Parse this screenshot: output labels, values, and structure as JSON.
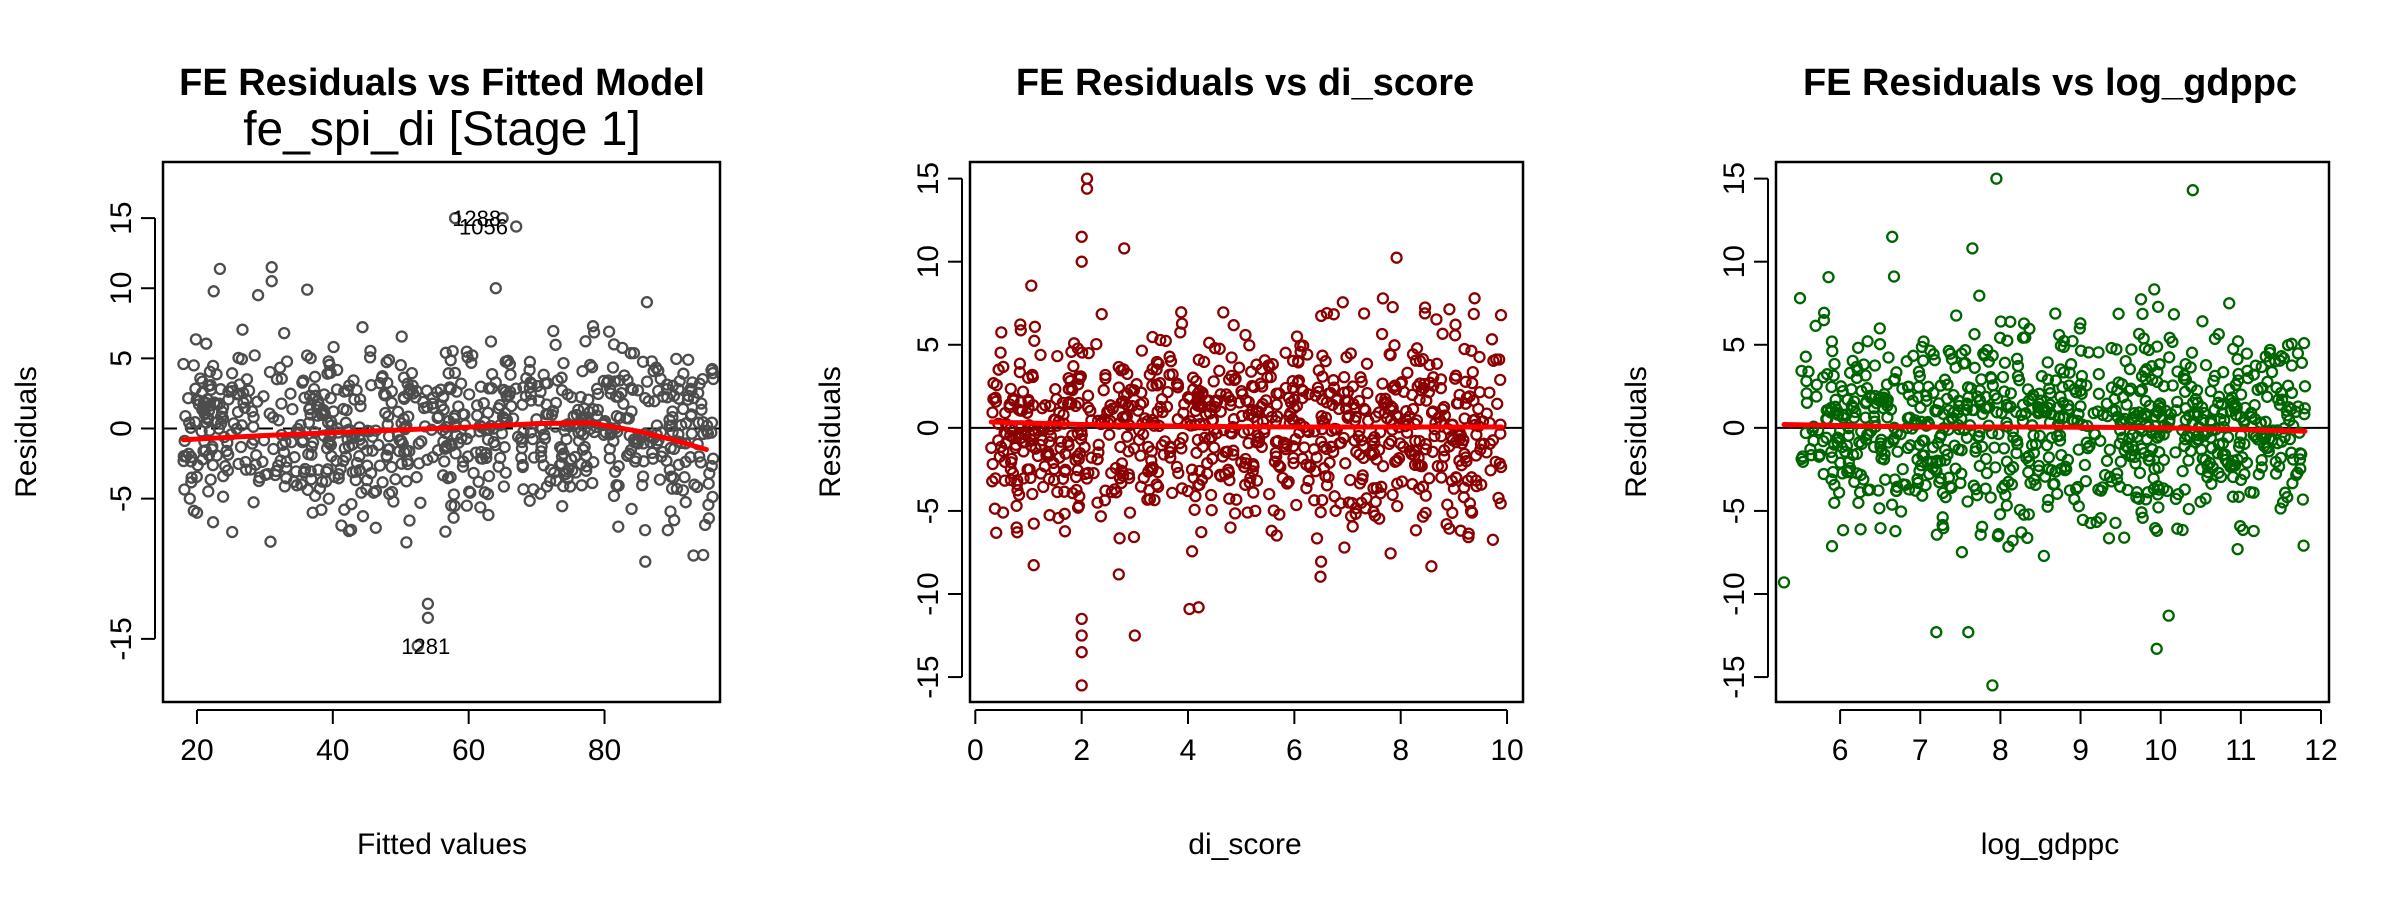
{
  "chart_data": [
    {
      "type": "scatter",
      "title": "FE Residuals vs Fitted Model",
      "subtitle": "fe_spi_di [Stage 1]",
      "xlabel": "Fitted values",
      "ylabel": "Residuals",
      "xlim": [
        15,
        97
      ],
      "ylim": [
        -19.5,
        19
      ],
      "xticks": [
        20,
        40,
        60,
        80
      ],
      "yticks": [
        -15,
        -5,
        0,
        5,
        10,
        15
      ],
      "point_color": "#4d4d4d",
      "smooth_color": "#ff0000",
      "reference_line": {
        "y": 0,
        "style": "dashed"
      },
      "smooth": {
        "x": [
          18,
          30,
          45,
          60,
          70,
          78,
          85,
          90,
          95
        ],
        "y": [
          -0.8,
          -0.5,
          -0.2,
          0.1,
          0.35,
          0.4,
          -0.2,
          -0.8,
          -1.5
        ]
      },
      "annotations": [
        {
          "text": "1288",
          "x": 60,
          "y": 15
        },
        {
          "text": "1056",
          "x": 61,
          "y": 14.4
        },
        {
          "text": "1281",
          "x": 52.5,
          "y": -15.5
        }
      ],
      "cloud": {
        "n": 800,
        "x": [
          18,
          96
        ],
        "y_sd": 3.2,
        "seed": 11
      },
      "highlight_points": [
        {
          "x": 58,
          "y": 15
        },
        {
          "x": 65,
          "y": 15
        },
        {
          "x": 67,
          "y": 14.4
        },
        {
          "x": 52.5,
          "y": -15.5
        },
        {
          "x": 54,
          "y": -12.5
        },
        {
          "x": 54,
          "y": -13.5
        },
        {
          "x": 86,
          "y": -9.5
        },
        {
          "x": 31,
          "y": 11.5
        },
        {
          "x": 31,
          "y": 10.5
        },
        {
          "x": 29,
          "y": 9.5
        },
        {
          "x": 64,
          "y": 10
        },
        {
          "x": 18,
          "y": 4.6
        }
      ]
    },
    {
      "type": "scatter",
      "title": "FE Residuals vs di_score",
      "xlabel": "di_score",
      "ylabel": "Residuals",
      "xlim": [
        -0.1,
        10.3
      ],
      "ylim": [
        -16.5,
        16
      ],
      "xticks": [
        0,
        2,
        4,
        6,
        8,
        10
      ],
      "yticks": [
        -15,
        -10,
        -5,
        0,
        5,
        10,
        15
      ],
      "point_color": "#8b0000",
      "smooth_color": "#ff0000",
      "reference_line": {
        "y": 0,
        "style": "solid"
      },
      "smooth": {
        "x": [
          0.3,
          2,
          4,
          6,
          8,
          9.9
        ],
        "y": [
          0.35,
          0.2,
          0.1,
          0.05,
          0.05,
          0.05
        ]
      },
      "cloud": {
        "n": 900,
        "x": [
          0.3,
          9.9
        ],
        "y_sd": 3.0,
        "seed": 23
      },
      "highlight_points": [
        {
          "x": 2.1,
          "y": 15
        },
        {
          "x": 2.1,
          "y": 14.4
        },
        {
          "x": 2.0,
          "y": 11.5
        },
        {
          "x": 2.0,
          "y": 10
        },
        {
          "x": 2.0,
          "y": -15.5
        },
        {
          "x": 2.0,
          "y": -13.5
        },
        {
          "x": 2.0,
          "y": -12.5
        },
        {
          "x": 3.0,
          "y": -12.5
        },
        {
          "x": 2.0,
          "y": -11.5
        },
        {
          "x": 4.2,
          "y": -10.8
        },
        {
          "x": 2.8,
          "y": 10.8
        },
        {
          "x": 0.3,
          "y": -1.2
        }
      ]
    },
    {
      "type": "scatter",
      "title": "FE Residuals vs log_gdppc",
      "xlabel": "log_gdppc",
      "ylabel": "Residuals",
      "xlim": [
        5.2,
        12.1
      ],
      "ylim": [
        -16.5,
        16
      ],
      "xticks": [
        6,
        7,
        8,
        9,
        10,
        11,
        12
      ],
      "yticks": [
        -15,
        -10,
        -5,
        0,
        5,
        10,
        15
      ],
      "point_color": "#006400",
      "smooth_color": "#ff0000",
      "reference_line": {
        "y": 0,
        "style": "solid"
      },
      "smooth": {
        "x": [
          5.3,
          7,
          8.5,
          10,
          11.8
        ],
        "y": [
          0.2,
          0.05,
          0.05,
          0.0,
          -0.2
        ]
      },
      "cloud": {
        "n": 900,
        "x": [
          5.5,
          11.8
        ],
        "y_sd": 3.0,
        "seed": 37
      },
      "highlight_points": [
        {
          "x": 7.95,
          "y": 15
        },
        {
          "x": 10.4,
          "y": 14.3
        },
        {
          "x": 7.9,
          "y": -15.5
        },
        {
          "x": 9.95,
          "y": -13.3
        },
        {
          "x": 5.3,
          "y": -9.3
        },
        {
          "x": 7.6,
          "y": -12.3
        },
        {
          "x": 6.65,
          "y": 11.5
        },
        {
          "x": 7.65,
          "y": 10.8
        },
        {
          "x": 10.1,
          "y": -11.3
        },
        {
          "x": 5.5,
          "y": 7.8
        },
        {
          "x": 11.8,
          "y": 2.5
        },
        {
          "x": 7.2,
          "y": -12.3
        }
      ]
    }
  ]
}
